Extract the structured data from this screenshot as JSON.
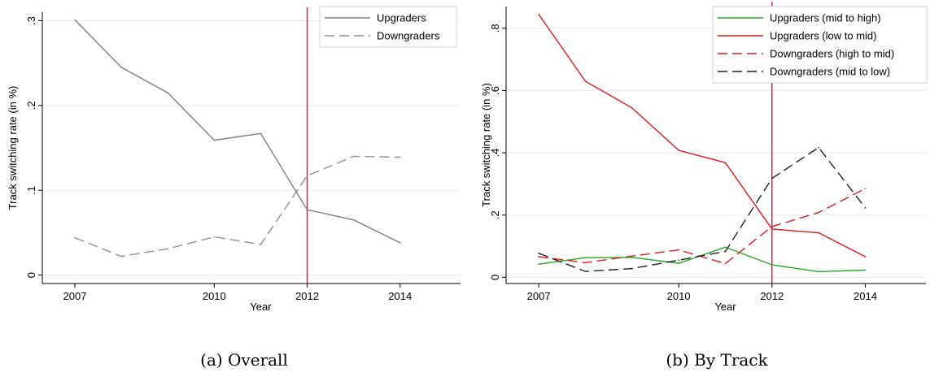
{
  "chart_data": [
    {
      "type": "line",
      "caption": "(a)  Overall",
      "xlabel": "Year",
      "ylabel": "Track switching rate (in %)",
      "xlim": [
        2006.3,
        2015.3
      ],
      "ylim": [
        -0.01,
        0.31
      ],
      "xticks": [
        2007,
        2010,
        2012,
        2014
      ],
      "yticks": [
        {
          "v": 0,
          "label": "0"
        },
        {
          "v": 0.1,
          "label": ".1"
        },
        {
          "v": 0.2,
          "label": ".2"
        },
        {
          "v": 0.3,
          "label": ".3"
        }
      ],
      "vline": 2012,
      "vline_color": "#b5173b",
      "grid": true,
      "legend_position": "top-right",
      "x": [
        2007,
        2008,
        2009,
        2010,
        2011,
        2012,
        2013,
        2014
      ],
      "series": [
        {
          "name": "Upgraders",
          "color": "#808080",
          "dash": "",
          "values": [
            0.301,
            0.245,
            0.215,
            0.159,
            0.167,
            0.077,
            0.065,
            0.038
          ]
        },
        {
          "name": "Downgraders",
          "color": "#909090",
          "dash": "12,6",
          "values": [
            0.044,
            0.022,
            0.031,
            0.045,
            0.036,
            0.117,
            0.14,
            0.139
          ]
        }
      ]
    },
    {
      "type": "line",
      "caption": "(b)  By Track",
      "xlabel": "Year",
      "ylabel": "Track switching rate (in %)",
      "xlim": [
        2006.3,
        2015.3
      ],
      "ylim": [
        -0.02,
        0.87
      ],
      "xticks": [
        2007,
        2010,
        2012,
        2014
      ],
      "yticks": [
        {
          "v": 0,
          "label": "0"
        },
        {
          "v": 0.2,
          "label": ".2"
        },
        {
          "v": 0.4,
          "label": ".4"
        },
        {
          "v": 0.6,
          "label": ".6"
        },
        {
          "v": 0.8,
          "label": ".8"
        }
      ],
      "vline": 2012,
      "vline_color": "#b5173b",
      "grid": true,
      "legend_position": "top-right",
      "x": [
        2007,
        2008,
        2009,
        2010,
        2011,
        2012,
        2013,
        2014
      ],
      "series": [
        {
          "name": "Upgraders (mid to high)",
          "color": "#22aa22",
          "dash": "",
          "values": [
            0.042,
            0.063,
            0.064,
            0.045,
            0.097,
            0.04,
            0.018,
            0.023
          ]
        },
        {
          "name": "Upgraders (low to mid)",
          "color": "#e41a1c",
          "dash": "",
          "values": [
            0.845,
            0.63,
            0.544,
            0.408,
            0.368,
            0.155,
            0.143,
            0.066
          ]
        },
        {
          "name": "Downgraders (high to mid)",
          "color": "#e41a1c",
          "dash": "12,6",
          "values": [
            0.066,
            0.047,
            0.068,
            0.088,
            0.044,
            0.163,
            0.208,
            0.285
          ]
        },
        {
          "name": "Downgraders (mid to low)",
          "color": "#222222",
          "dash": "12,6",
          "values": [
            0.077,
            0.019,
            0.028,
            0.055,
            0.083,
            0.318,
            0.417,
            0.223
          ]
        }
      ]
    }
  ]
}
